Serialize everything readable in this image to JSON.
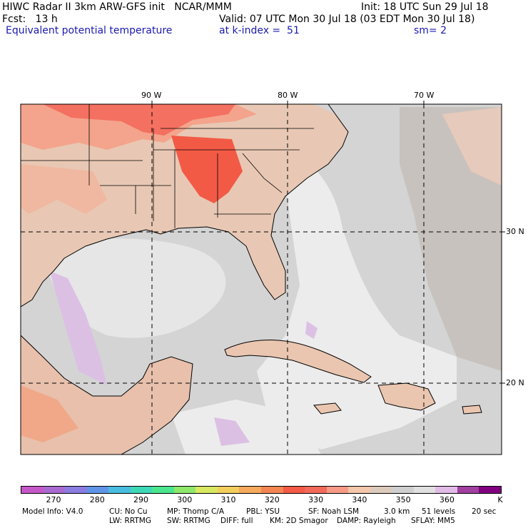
{
  "header": {
    "line1_left": "HIWC Radar II 3km ARW-GFS init   NCAR/MMM",
    "line1_right": "Init: 18 UTC Sun 29 Jul 18",
    "line2_left": "Fcst:   13 h",
    "line2_right": "Valid: 07 UTC Mon 30 Jul 18 (03 EDT Mon 30 Jul 18)",
    "line3_left": "Equivalent potential temperature",
    "line3_mid": "at k-index =  51",
    "line3_right": "sm= 2"
  },
  "map": {
    "longitude_labels": [
      "90 W",
      "80 W",
      "70 W"
    ],
    "latitude_labels": [
      "30 N",
      "20 N"
    ]
  },
  "colorbar": {
    "colors": [
      "#c657c8",
      "#a86ad0",
      "#8a7ce0",
      "#5f95e8",
      "#48bde0",
      "#3ed8b6",
      "#4be68e",
      "#8ee86a",
      "#d8e860",
      "#f2ce5c",
      "#f6aa5c",
      "#f48654",
      "#f45a46",
      "#f46a5a",
      "#f69a86",
      "#f4c6aa",
      "#dccabc",
      "#cfcfcf",
      "#e0e0e0",
      "#e0bbe6",
      "#a040a0",
      "#800080"
    ],
    "labels": [
      "270",
      "280",
      "290",
      "300",
      "310",
      "320",
      "330",
      "340",
      "350",
      "360"
    ],
    "unit": "K"
  },
  "footer": {
    "model_info": "Model Info: V4.0",
    "cu": "CU: No Cu",
    "mp": "MP: Thomp C/A",
    "pbl": "PBL: YSU",
    "sf": "SF: Noah LSM",
    "res": "3.0 km",
    "levels": "51 levels",
    "dt": "20 sec",
    "lw": "LW: RRTMG",
    "sw": "SW: RRTMG",
    "diff": "DIFF: full",
    "km": "KM: 2D Smagor",
    "damp": "DAMP: Rayleigh",
    "sflay": "SFLAY: MM5"
  }
}
